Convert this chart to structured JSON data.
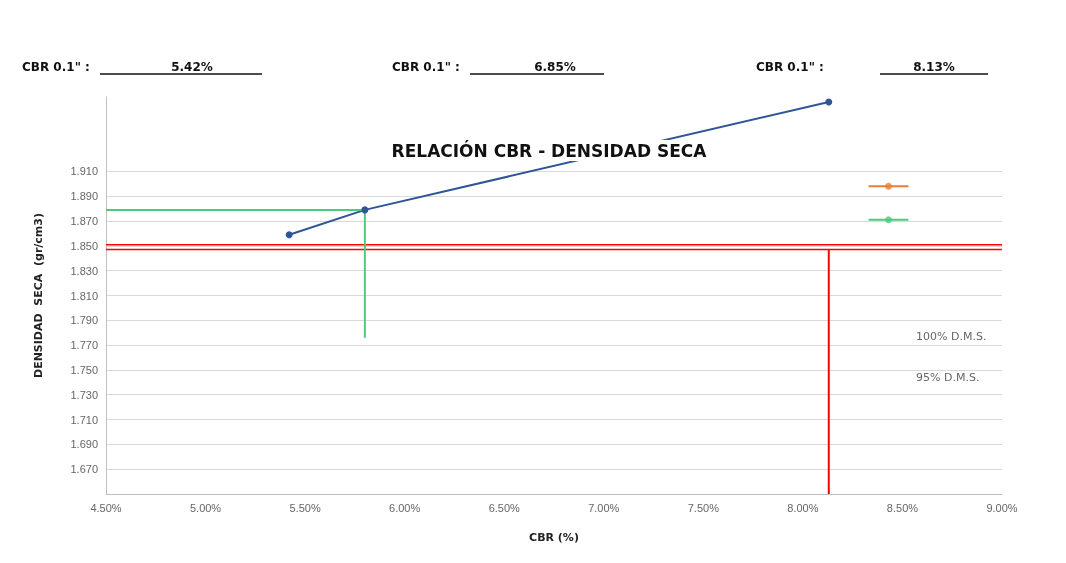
{
  "chart_data": {
    "type": "line",
    "title": "RELACIÓN CBR - DENSIDAD SECA",
    "xlabel": "CBR (%)",
    "ylabel": "DENSIDAD  SECA  (gr/cm3)",
    "annotations": [
      "CBR 0.1\" :",
      "5.42%",
      "CBR 0.1\" :",
      "6.85%",
      "CBR 0.1\" :",
      "8.13%",
      "100% D.M.S.",
      "95% D.M.S."
    ],
    "xlim": [
      4.5,
      9.0
    ],
    "xticks": [
      {
        "value": 4.5,
        "label": "4.50%"
      },
      {
        "value": 5.0,
        "label": "5.00%"
      },
      {
        "value": 5.5,
        "label": "5.50%"
      },
      {
        "value": 6.0,
        "label": "6.00%"
      },
      {
        "value": 6.5,
        "label": "6.50%"
      },
      {
        "value": 7.0,
        "label": "7.00%"
      },
      {
        "value": 7.5,
        "label": "7.50%"
      },
      {
        "value": 8.0,
        "label": "8.00%"
      },
      {
        "value": 8.5,
        "label": "8.50%"
      },
      {
        "value": 9.0,
        "label": "9.00%"
      }
    ],
    "ylim": [
      1.65,
      1.97
    ],
    "yticks": [
      {
        "value": 1.65,
        "label": null
      },
      {
        "value": 1.67,
        "label": "1.670"
      },
      {
        "value": 1.69,
        "label": "1.690"
      },
      {
        "value": 1.71,
        "label": "1.710"
      },
      {
        "value": 1.73,
        "label": "1.730"
      },
      {
        "value": 1.75,
        "label": "1.750"
      },
      {
        "value": 1.77,
        "label": "1.770"
      },
      {
        "value": 1.79,
        "label": "1.790"
      },
      {
        "value": 1.81,
        "label": "1.810"
      },
      {
        "value": 1.83,
        "label": "1.830"
      },
      {
        "value": 1.85,
        "label": "1.850"
      },
      {
        "value": 1.87,
        "label": "1.870"
      },
      {
        "value": 1.89,
        "label": "1.890"
      },
      {
        "value": 1.91,
        "label": "1.910"
      }
    ],
    "grid": "y",
    "ref_lines": [
      {
        "axis": "y",
        "value": 1.851,
        "color": "#ff0000"
      },
      {
        "axis": "y",
        "value": 1.847,
        "color": "#ff0000"
      }
    ],
    "series": [
      {
        "color": "#2f5597",
        "marker": "circle",
        "x": [
          5.42,
          5.8,
          8.13
        ],
        "values": [
          1.859,
          1.879,
          1.966
        ]
      },
      {
        "color": "#4ccb7c",
        "marker": "none",
        "x": [
          4.5,
          5.8,
          5.8
        ],
        "values": [
          1.879,
          1.879,
          1.776
        ]
      },
      {
        "color": "#ff0000",
        "marker": "none",
        "x": [
          8.13,
          8.13
        ],
        "values": [
          1.847,
          1.65
        ]
      },
      {
        "type": "scatter",
        "color": "#ed7d31",
        "marker": "circle",
        "x": [
          8.43
        ],
        "values": [
          1.898
        ],
        "xerrors": [
          0.1
        ]
      },
      {
        "type": "scatter",
        "color": "#4ccb7c",
        "marker": "circle",
        "x": [
          8.43
        ],
        "values": [
          1.871
        ],
        "xerrors": [
          0.1
        ]
      }
    ]
  }
}
